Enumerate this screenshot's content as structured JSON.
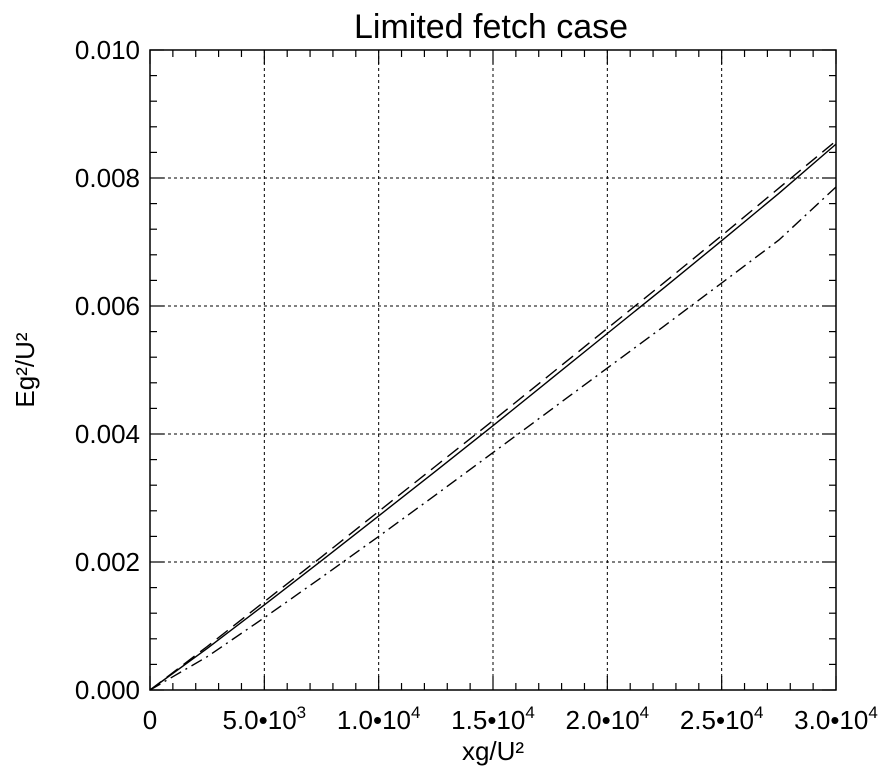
{
  "chart_data": {
    "type": "line",
    "title": "Limited fetch case",
    "xlabel": "xg/U²",
    "ylabel": "Eg²/U²",
    "xlim": [
      0,
      30000
    ],
    "ylim": [
      0,
      0.01
    ],
    "grid": true,
    "x_ticks": [
      0,
      5000,
      10000,
      15000,
      20000,
      25000,
      30000
    ],
    "x_tick_labels": [
      {
        "base": "0",
        "exp": ""
      },
      {
        "base": "5.0•10",
        "exp": "3"
      },
      {
        "base": "1.0•10",
        "exp": "4"
      },
      {
        "base": "1.5•10",
        "exp": "4"
      },
      {
        "base": "2.0•10",
        "exp": "4"
      },
      {
        "base": "2.5•10",
        "exp": "4"
      },
      {
        "base": "3.0•10",
        "exp": "4"
      }
    ],
    "y_ticks": [
      0,
      0.002,
      0.004,
      0.006,
      0.008,
      0.01
    ],
    "y_tick_labels": [
      "0.000",
      "0.002",
      "0.004",
      "0.006",
      "0.008",
      "0.010"
    ],
    "x_minor_step": 1000,
    "y_minor_step": 0.0004,
    "series": [
      {
        "style": "solid",
        "x": [
          0,
          2500,
          5000,
          7500,
          10000,
          12500,
          15000,
          17500,
          20000,
          22500,
          25000,
          27500,
          30000
        ],
        "values": [
          0,
          0.00065,
          0.00133,
          0.00202,
          0.00272,
          0.00342,
          0.00413,
          0.00485,
          0.00557,
          0.00629,
          0.00702,
          0.00776,
          0.00853
        ]
      },
      {
        "style": "dashed",
        "x": [
          0,
          2500,
          5000,
          7500,
          10000,
          12500,
          15000,
          17500,
          20000,
          22500,
          25000,
          27500,
          30000
        ],
        "values": [
          0,
          0.00068,
          0.00138,
          0.00208,
          0.00279,
          0.0035,
          0.00421,
          0.00493,
          0.00565,
          0.00637,
          0.0071,
          0.00784,
          0.00858
        ]
      },
      {
        "style": "dashdot",
        "x": [
          0,
          2500,
          5000,
          7500,
          10000,
          12500,
          15000,
          17500,
          20000,
          22500,
          25000,
          27500,
          30000
        ],
        "values": [
          0,
          0.00052,
          0.00113,
          0.00176,
          0.0024,
          0.00305,
          0.00371,
          0.00437,
          0.00503,
          0.00569,
          0.00636,
          0.00703,
          0.00786
        ]
      }
    ]
  }
}
